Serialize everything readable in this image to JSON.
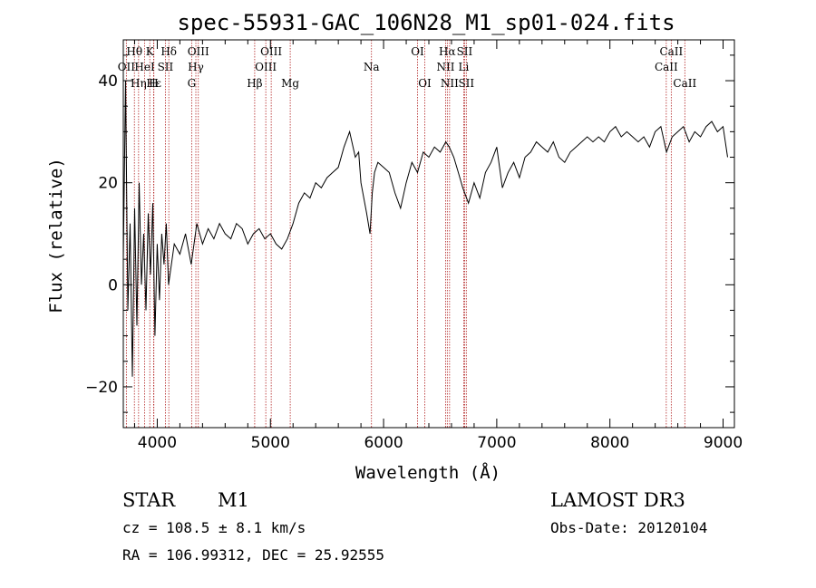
{
  "chart_data": {
    "type": "line",
    "title": "spec-55931-GAC_106N28_M1_sp01-024.fits",
    "xlabel": "Wavelength (Å)",
    "ylabel": "Flux (relative)",
    "xlim": [
      3700,
      9100
    ],
    "ylim": [
      -28,
      48
    ],
    "xticks": [
      4000,
      5000,
      6000,
      7000,
      8000,
      9000
    ],
    "yticks": [
      -20,
      0,
      20,
      40
    ],
    "series": [
      {
        "name": "flux",
        "x": [
          3700,
          3720,
          3740,
          3760,
          3780,
          3800,
          3820,
          3840,
          3860,
          3880,
          3900,
          3920,
          3940,
          3960,
          3980,
          4000,
          4020,
          4040,
          4060,
          4080,
          4100,
          4150,
          4200,
          4250,
          4300,
          4350,
          4400,
          4450,
          4500,
          4550,
          4600,
          4650,
          4700,
          4750,
          4800,
          4850,
          4900,
          4950,
          5000,
          5050,
          5100,
          5150,
          5200,
          5250,
          5300,
          5350,
          5400,
          5450,
          5500,
          5550,
          5600,
          5650,
          5700,
          5750,
          5780,
          5800,
          5850,
          5880,
          5900,
          5920,
          5950,
          6000,
          6050,
          6100,
          6150,
          6200,
          6250,
          6300,
          6350,
          6400,
          6450,
          6500,
          6550,
          6580,
          6620,
          6660,
          6700,
          6750,
          6800,
          6850,
          6900,
          6950,
          7000,
          7050,
          7100,
          7150,
          7200,
          7250,
          7300,
          7350,
          7400,
          7450,
          7500,
          7550,
          7600,
          7650,
          7700,
          7750,
          7800,
          7850,
          7900,
          7950,
          8000,
          8050,
          8100,
          8150,
          8200,
          8250,
          8300,
          8350,
          8400,
          8450,
          8500,
          8550,
          8600,
          8650,
          8700,
          8750,
          8800,
          8850,
          8900,
          8950,
          9000,
          9040
        ],
        "values": [
          5,
          40,
          -5,
          12,
          -18,
          15,
          -8,
          20,
          0,
          10,
          -5,
          14,
          2,
          16,
          -10,
          8,
          -3,
          10,
          4,
          12,
          0,
          8,
          6,
          10,
          4,
          12,
          8,
          11,
          9,
          12,
          10,
          9,
          12,
          11,
          8,
          10,
          11,
          9,
          10,
          8,
          7,
          9,
          12,
          16,
          18,
          17,
          20,
          19,
          21,
          22,
          23,
          27,
          30,
          25,
          26,
          20,
          14,
          10,
          18,
          22,
          24,
          23,
          22,
          18,
          15,
          20,
          24,
          22,
          26,
          25,
          27,
          26,
          28,
          27,
          25,
          22,
          19,
          16,
          20,
          17,
          22,
          24,
          27,
          19,
          22,
          24,
          21,
          25,
          26,
          28,
          27,
          26,
          28,
          25,
          24,
          26,
          27,
          28,
          29,
          28,
          29,
          28,
          30,
          31,
          29,
          30,
          29,
          28,
          29,
          27,
          30,
          31,
          26,
          29,
          30,
          31,
          28,
          30,
          29,
          31,
          32,
          30,
          31,
          25
        ]
      }
    ],
    "lines": [
      {
        "label": "Hθ",
        "wave": 3798,
        "row": 1
      },
      {
        "label": "OII",
        "wave": 3727,
        "row": 2
      },
      {
        "label": "HeI",
        "wave": 3889,
        "row": 2
      },
      {
        "label": "Hε",
        "wave": 3970,
        "row": 3
      },
      {
        "label": "Hη",
        "wave": 3835,
        "row": 3
      },
      {
        "label": "K",
        "wave": 3934,
        "row": 1
      },
      {
        "label": "H",
        "wave": 3968,
        "row": 3
      },
      {
        "label": "SII",
        "wave": 4072,
        "row": 2
      },
      {
        "label": "Hδ",
        "wave": 4102,
        "row": 1
      },
      {
        "label": "OIII",
        "wave": 4363,
        "row": 1
      },
      {
        "label": "Hγ",
        "wave": 4341,
        "row": 2
      },
      {
        "label": "G",
        "wave": 4304,
        "row": 3
      },
      {
        "label": "Hβ",
        "wave": 4861,
        "row": 3
      },
      {
        "label": "OIII",
        "wave": 5007,
        "row": 1
      },
      {
        "label": "OIII",
        "wave": 4959,
        "row": 2
      },
      {
        "label": "Mg",
        "wave": 5175,
        "row": 3
      },
      {
        "label": "Na",
        "wave": 5893,
        "row": 2
      },
      {
        "label": "OI",
        "wave": 6300,
        "row": 1
      },
      {
        "label": "OI",
        "wave": 6364,
        "row": 3
      },
      {
        "label": "Hα",
        "wave": 6563,
        "row": 1
      },
      {
        "label": "NII",
        "wave": 6548,
        "row": 2
      },
      {
        "label": "NII",
        "wave": 6583,
        "row": 3
      },
      {
        "label": "SII",
        "wave": 6716,
        "row": 1
      },
      {
        "label": "Li",
        "wave": 6708,
        "row": 2
      },
      {
        "label": "SII",
        "wave": 6731,
        "row": 3
      },
      {
        "label": "CaII",
        "wave": 8542,
        "row": 1
      },
      {
        "label": "CaII",
        "wave": 8498,
        "row": 2
      },
      {
        "label": "CaII",
        "wave": 8662,
        "row": 3
      }
    ]
  },
  "info": {
    "class": "STAR",
    "subclass": "M1",
    "survey": "LAMOST DR3",
    "cz": "cz = 108.5 ± 8.1 km/s",
    "obs_date": "Obs-Date: 20120104",
    "coords": "RA = 106.99312, DEC =  25.92555"
  },
  "colors": {
    "line_marker": "#b22222",
    "spectrum": "#000000",
    "axes": "#000000"
  }
}
